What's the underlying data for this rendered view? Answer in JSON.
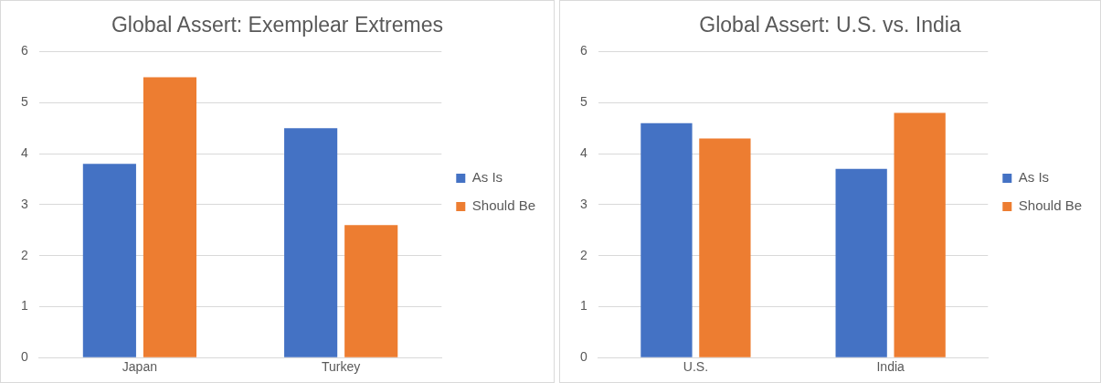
{
  "chart_data": [
    {
      "type": "bar",
      "title": "Global Assert: Exemplear Extremes",
      "categories": [
        "Japan",
        "Turkey"
      ],
      "series": [
        {
          "name": "As Is",
          "color": "#4472c4",
          "values": [
            3.8,
            4.5
          ]
        },
        {
          "name": "Should Be",
          "color": "#ed7d31",
          "values": [
            5.5,
            2.6
          ]
        }
      ],
      "ylim": [
        0,
        6
      ],
      "yticks": [
        0,
        1,
        2,
        3,
        4,
        5,
        6
      ],
      "grid": "y",
      "legend": "right"
    },
    {
      "type": "bar",
      "title": "Global Assert: U.S. vs. India",
      "categories": [
        "U.S.",
        "India"
      ],
      "series": [
        {
          "name": "As Is",
          "color": "#4472c4",
          "values": [
            4.6,
            3.7
          ]
        },
        {
          "name": "Should Be",
          "color": "#ed7d31",
          "values": [
            4.3,
            4.8
          ]
        }
      ],
      "ylim": [
        0,
        6
      ],
      "yticks": [
        0,
        1,
        2,
        3,
        4,
        5,
        6
      ],
      "grid": "y",
      "legend": "right"
    }
  ]
}
